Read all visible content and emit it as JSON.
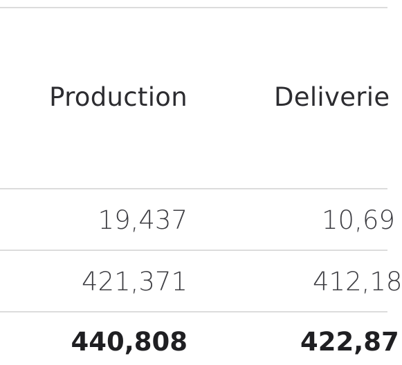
{
  "table": {
    "headers": [
      "Production",
      "Deliverie"
    ],
    "rows": [
      [
        "19,437",
        "10,69"
      ],
      [
        "421,371",
        "412,18"
      ]
    ],
    "total": [
      "440,808",
      "422,87"
    ]
  }
}
